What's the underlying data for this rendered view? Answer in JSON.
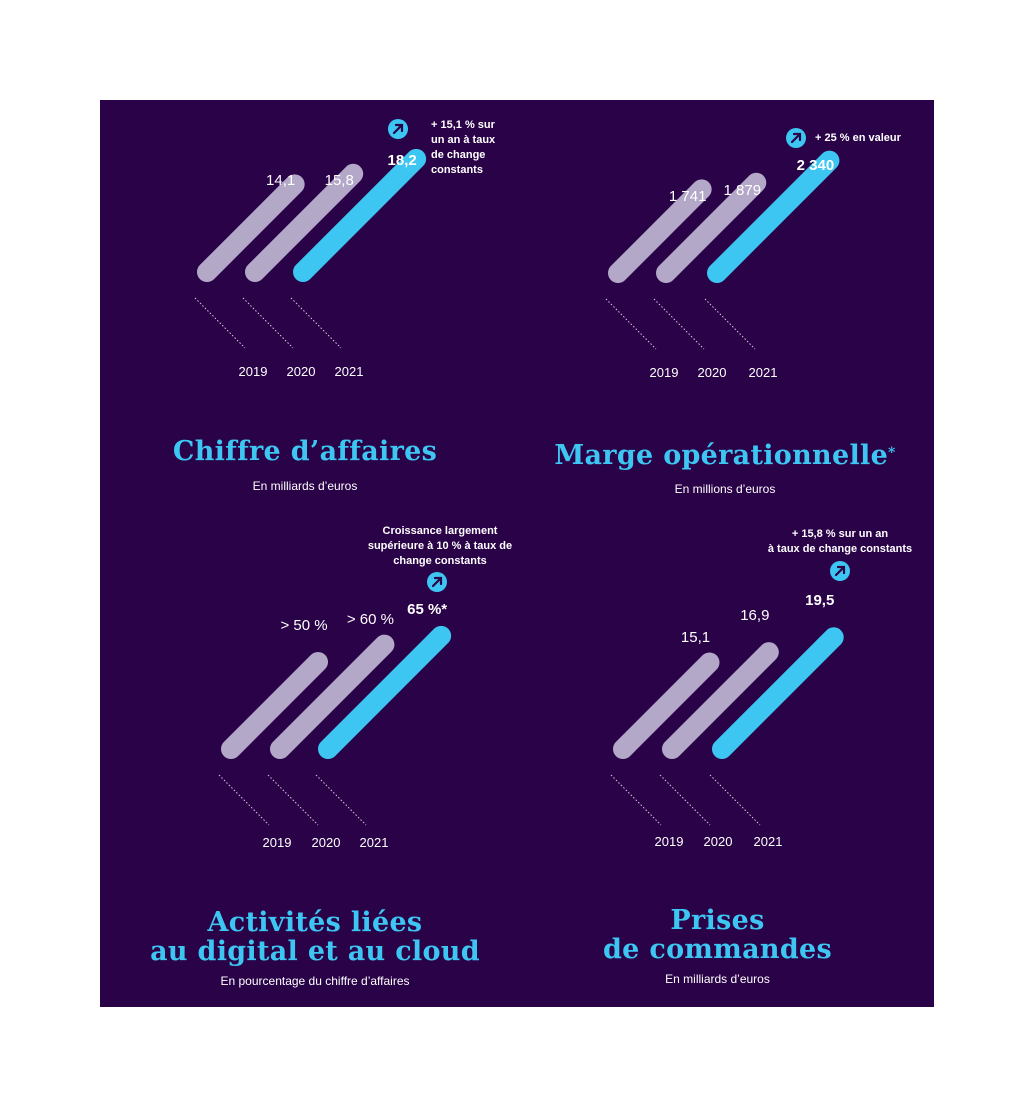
{
  "colors": {
    "background": "#2a0248",
    "bar_past": "#b3a8c8",
    "bar_current": "#3ec6f3",
    "text": "#ffffff",
    "title": "#3ec6f3"
  },
  "panels": [
    {
      "title_lines": [
        "Chiffre d’affaires"
      ],
      "title_sup": "",
      "subtitle": "En milliards d’euros",
      "note_lines": [
        "+ 15,1 % sur",
        "un an à taux",
        "de change",
        "constants"
      ],
      "icon": "arrow-up-right-icon"
    },
    {
      "title_lines": [
        "Marge opérationnelle"
      ],
      "title_sup": "*",
      "subtitle": "En millions d’euros",
      "note_lines": [
        "+ 25 % en valeur"
      ],
      "icon": "arrow-up-right-icon"
    },
    {
      "title_lines": [
        "Activités liées",
        "au digital et au cloud"
      ],
      "title_sup": "",
      "subtitle": "En pourcentage du chiffre d’affaires",
      "note_lines": [
        "Croissance largement",
        "supérieure à 10 % à taux de",
        "change constants"
      ],
      "icon": "arrow-up-right-icon"
    },
    {
      "title_lines": [
        "Prises",
        "de commandes"
      ],
      "title_sup": "",
      "subtitle": "En milliards d’euros",
      "note_lines": [
        "+ 15,8 % sur un an",
        "à taux de change constants"
      ],
      "icon": "arrow-up-right-icon"
    }
  ],
  "chart_data": [
    {
      "type": "bar",
      "categories": [
        "2019",
        "2020",
        "2021"
      ],
      "values": [
        14.1,
        15.8,
        18.2
      ],
      "value_labels": [
        "14,1",
        "15,8",
        "18,2"
      ],
      "highlight_index": 2
    },
    {
      "type": "bar",
      "categories": [
        "2019",
        "2020",
        "2021"
      ],
      "values": [
        1741,
        1879,
        2340
      ],
      "value_labels": [
        "1 741",
        "1 879",
        "2 340"
      ],
      "highlight_index": 2
    },
    {
      "type": "bar",
      "categories": [
        "2019",
        "2020",
        "2021"
      ],
      "values": [
        50,
        60,
        65
      ],
      "value_labels": [
        "> 50 %",
        "> 60 %",
        "65 %*"
      ],
      "highlight_index": 2
    },
    {
      "type": "bar",
      "categories": [
        "2019",
        "2020",
        "2021"
      ],
      "values": [
        15.1,
        16.9,
        19.5
      ],
      "value_labels": [
        "15,1",
        "16,9",
        "19,5"
      ],
      "highlight_index": 2
    }
  ]
}
